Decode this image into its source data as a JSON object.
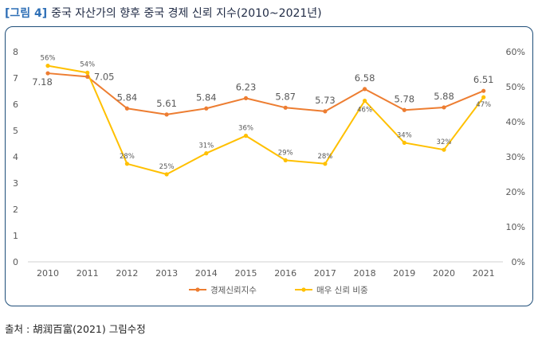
{
  "figure": {
    "tag": "[그림 4]",
    "title": "중국 자산가의 향후 중국 경제 신뢰 지수(2010~2021년)",
    "source": "출처 : 胡润百富(2021) 그림수정"
  },
  "chart_data": {
    "type": "line",
    "title": "중국 자산가의 향후 중국 경제 신뢰 지수(2010~2021년)",
    "categories": [
      "2010",
      "2011",
      "2012",
      "2013",
      "2014",
      "2015",
      "2016",
      "2017",
      "2018",
      "2019",
      "2020",
      "2021"
    ],
    "y_left": {
      "ticks": [
        "0",
        "1",
        "2",
        "3",
        "4",
        "5",
        "6",
        "7",
        "8"
      ],
      "ylim": [
        0,
        8
      ]
    },
    "y_right": {
      "ticks": [
        "0%",
        "10%",
        "20%",
        "30%",
        "40%",
        "50%",
        "60%"
      ],
      "ylim": [
        0,
        60
      ]
    },
    "grid": false,
    "legend_position": "bottom",
    "series": [
      {
        "name": "경제신뢰지수",
        "axis": "left",
        "color": "#ed7d31",
        "values": [
          7.18,
          7.05,
          5.84,
          5.61,
          5.84,
          6.23,
          5.87,
          5.73,
          6.58,
          5.78,
          5.88,
          6.51
        ],
        "labels": [
          "7.18",
          "7.05",
          "5.84",
          "5.61",
          "5.84",
          "6.23",
          "5.87",
          "5.73",
          "6.58",
          "5.78",
          "5.88",
          "6.51"
        ]
      },
      {
        "name": "매우 신뢰 비중",
        "axis": "right",
        "color": "#ffc000",
        "values": [
          56,
          54,
          28,
          25,
          31,
          36,
          29,
          28,
          46,
          34,
          32,
          47
        ],
        "labels": [
          "56%",
          "54%",
          "28%",
          "25%",
          "31%",
          "36%",
          "29%",
          "28%",
          "46%",
          "34%",
          "32%",
          "47%"
        ]
      }
    ]
  }
}
